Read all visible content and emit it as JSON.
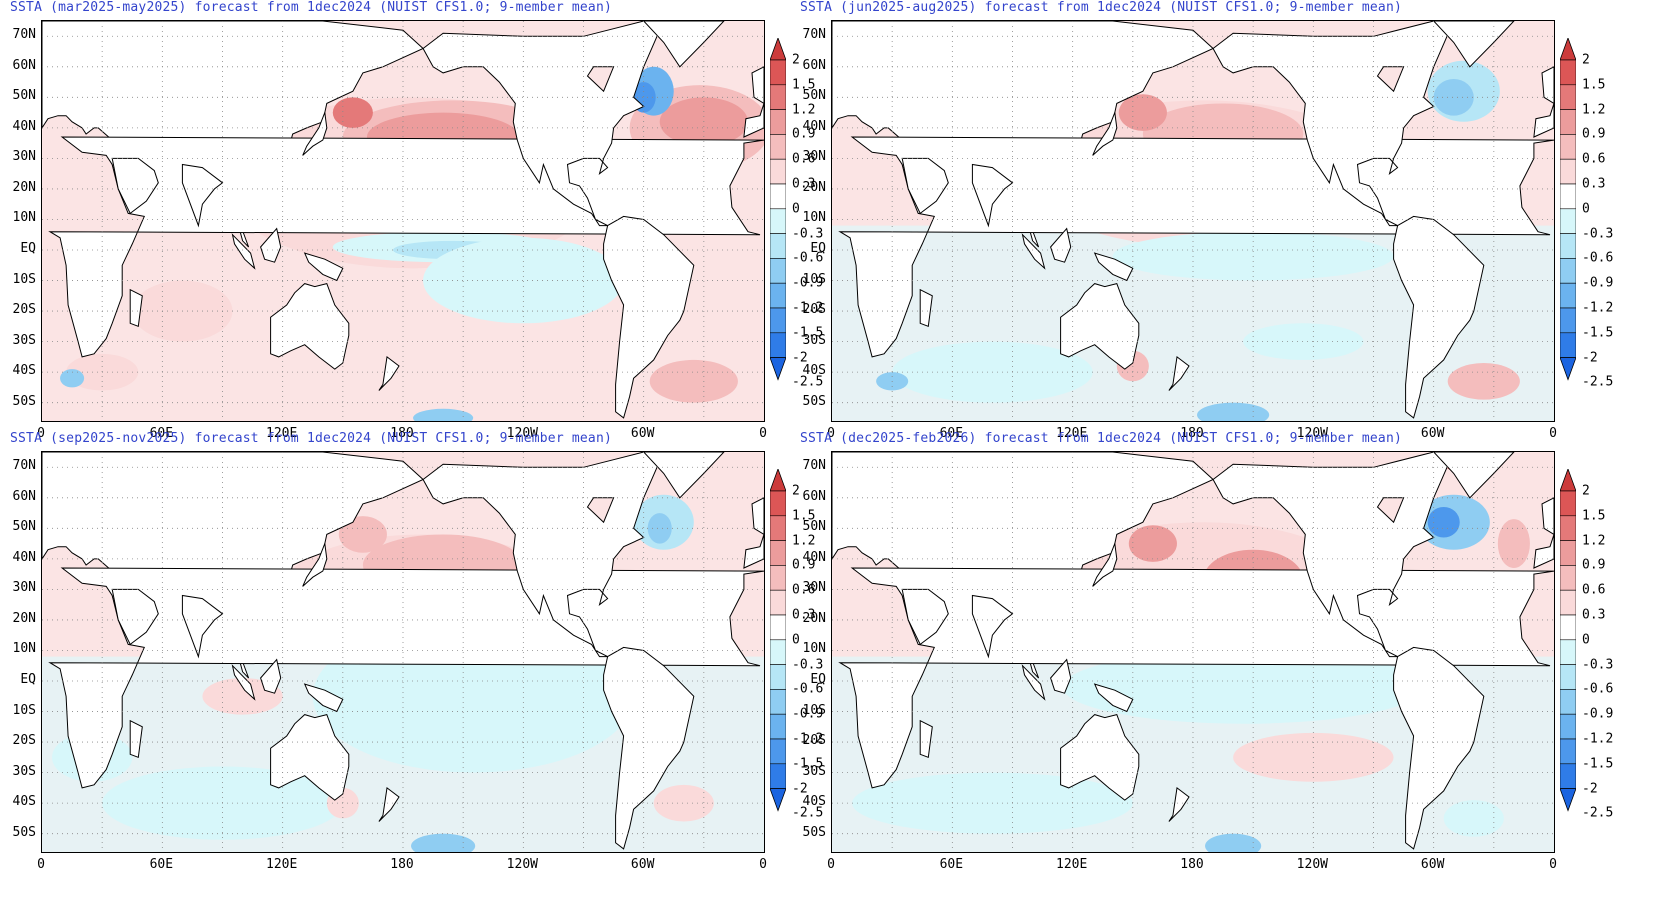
{
  "panels": [
    {
      "title": "SSTA (mar2025-may2025) forecast from 1dec2024 (NUIST CFS1.0; 9-member mean)"
    },
    {
      "title": "SSTA (jun2025-aug2025) forecast from 1dec2024 (NUIST CFS1.0; 9-member mean)"
    },
    {
      "title": "SSTA (sep2025-nov2025) forecast from 1dec2024 (NUIST CFS1.0; 9-member mean)"
    },
    {
      "title": "SSTA (dec2025-feb2026) forecast from 1dec2024 (NUIST CFS1.0; 9-member mean)"
    }
  ],
  "lat_labels": [
    "70N",
    "60N",
    "50N",
    "40N",
    "30N",
    "20N",
    "10N",
    "EQ",
    "10S",
    "20S",
    "30S",
    "40S",
    "50S"
  ],
  "lon_labels": [
    "0",
    "60E",
    "120E",
    "180",
    "120W",
    "60W",
    "0"
  ],
  "colorbar": {
    "ticks": [
      "2",
      "1.5",
      "1.2",
      "0.9",
      "0.6",
      "0.3",
      "0",
      "-0.3",
      "-0.6",
      "-0.9",
      "-1.2",
      "-1.5",
      "-2",
      "-2.5"
    ],
    "colors": [
      "#cc3b3b",
      "#dc5656",
      "#e47979",
      "#ec9c9c",
      "#f4bdbd",
      "#fadada",
      "#ffffff",
      "#d7f7fa",
      "#b6e6f6",
      "#8fcdf2",
      "#6bb3ef",
      "#4d98ec",
      "#2f7ce8",
      "#1b64e0"
    ]
  },
  "colors": {
    "title": "#3344cc",
    "ocean_neutral_warm": "#fbe4e4",
    "ocean_neutral_cool": "#def8fb",
    "land": "#ffffff"
  }
}
